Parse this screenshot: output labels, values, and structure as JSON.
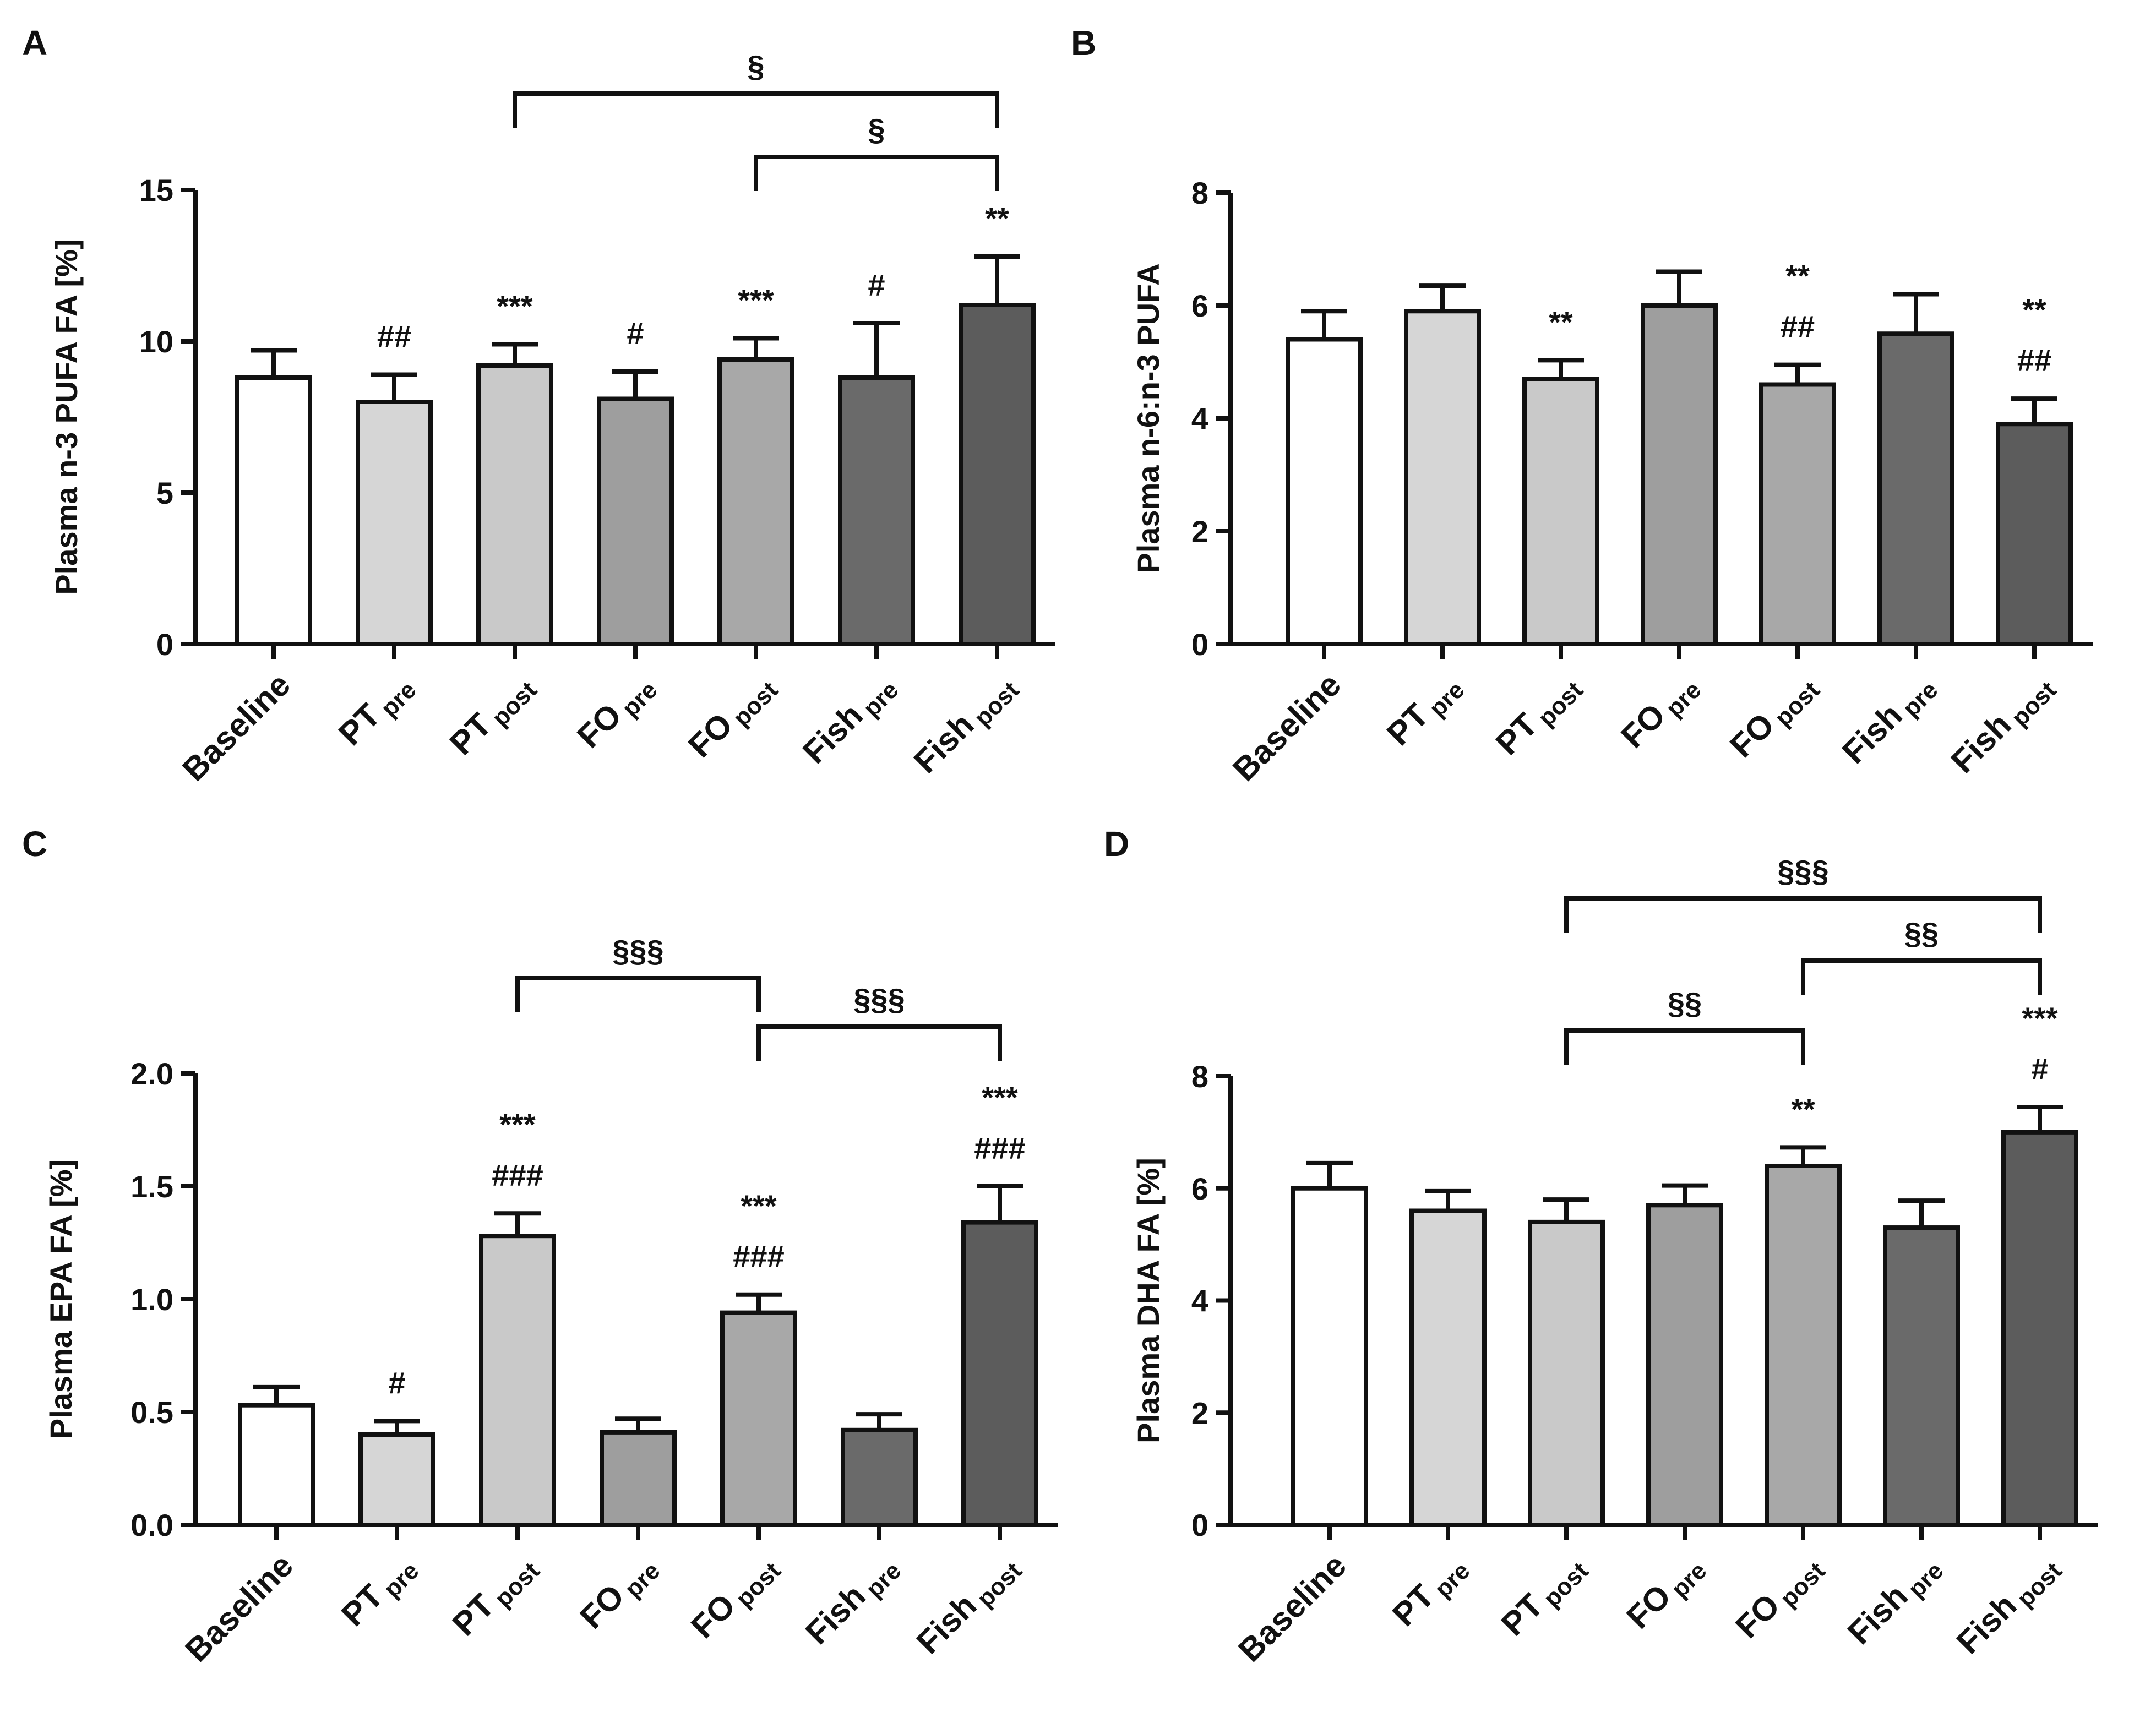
{
  "colors": {
    "Baseline": "#ffffff",
    "PT_pre": "#d6d6d6",
    "PT_post": "#c9c9c9",
    "FO_pre": "#9e9e9e",
    "FO_post": "#a8a8a8",
    "Fish_pre": "#6a6a6a",
    "Fish_post": "#5c5c5c"
  },
  "chart_data": [
    {
      "panel": "A",
      "type": "bar",
      "title": "",
      "ylabel": "Plasma n-3 PUFA FA [%]",
      "xlabel": "",
      "ylim": [
        0,
        15
      ],
      "yticks": [
        0,
        5,
        10,
        15
      ],
      "ytick_labels": [
        "0",
        "5",
        "10",
        "15"
      ],
      "categories": [
        {
          "main": "Baseline",
          "sub": ""
        },
        {
          "main": "PT",
          "sub": "pre"
        },
        {
          "main": "PT",
          "sub": "post"
        },
        {
          "main": "FO",
          "sub": "pre"
        },
        {
          "main": "FO",
          "sub": "post"
        },
        {
          "main": "Fish",
          "sub": "pre"
        },
        {
          "main": "Fish",
          "sub": "post"
        }
      ],
      "values": [
        8.8,
        8.0,
        9.2,
        8.1,
        9.4,
        8.8,
        11.2
      ],
      "errors": [
        0.9,
        0.9,
        0.7,
        0.9,
        0.7,
        1.8,
        1.6
      ],
      "annotations": [
        [],
        [
          "##"
        ],
        [
          "***"
        ],
        [
          "#"
        ],
        [
          "***"
        ],
        [
          "#"
        ],
        [
          "**"
        ]
      ],
      "brackets": [
        {
          "from": 2,
          "to": 6,
          "label": "§"
        },
        {
          "from": 4,
          "to": 6,
          "label": "§"
        }
      ]
    },
    {
      "panel": "B",
      "type": "bar",
      "title": "",
      "ylabel": "Plasma n-6:n-3 PUFA",
      "xlabel": "",
      "ylim": [
        0,
        8
      ],
      "yticks": [
        0,
        2,
        4,
        6,
        8
      ],
      "ytick_labels": [
        "0",
        "2",
        "4",
        "6",
        "8"
      ],
      "categories": [
        {
          "main": "Baseline",
          "sub": ""
        },
        {
          "main": "PT",
          "sub": "pre"
        },
        {
          "main": "PT",
          "sub": "post"
        },
        {
          "main": "FO",
          "sub": "pre"
        },
        {
          "main": "FO",
          "sub": "post"
        },
        {
          "main": "Fish",
          "sub": "pre"
        },
        {
          "main": "Fish",
          "sub": "post"
        }
      ],
      "values": [
        5.4,
        5.9,
        4.7,
        6.0,
        4.6,
        5.5,
        3.9
      ],
      "errors": [
        0.5,
        0.45,
        0.33,
        0.6,
        0.35,
        0.7,
        0.45
      ],
      "annotations": [
        [],
        [],
        [
          "**"
        ],
        [],
        [
          "**",
          "##"
        ],
        [],
        [
          "**",
          "##"
        ]
      ],
      "brackets": []
    },
    {
      "panel": "C",
      "type": "bar",
      "title": "",
      "ylabel": "Plasma EPA FA [%]",
      "xlabel": "",
      "ylim": [
        0,
        2
      ],
      "yticks": [
        0,
        0.5,
        1,
        1.5,
        2
      ],
      "ytick_labels": [
        "0.0",
        "0.5",
        "1.0",
        "1.5",
        "2.0"
      ],
      "categories": [
        {
          "main": "Baseline",
          "sub": ""
        },
        {
          "main": "PT",
          "sub": "pre"
        },
        {
          "main": "PT",
          "sub": "post"
        },
        {
          "main": "FO",
          "sub": "pre"
        },
        {
          "main": "FO",
          "sub": "post"
        },
        {
          "main": "Fish",
          "sub": "pre"
        },
        {
          "main": "Fish",
          "sub": "post"
        }
      ],
      "values": [
        0.53,
        0.4,
        1.28,
        0.41,
        0.94,
        0.42,
        1.34
      ],
      "errors": [
        0.08,
        0.06,
        0.1,
        0.06,
        0.08,
        0.07,
        0.16
      ],
      "annotations": [
        [],
        [
          "#"
        ],
        [
          "***",
          "###"
        ],
        [],
        [
          "***",
          "###"
        ],
        [],
        [
          "***",
          "###"
        ]
      ],
      "brackets": [
        {
          "from": 2,
          "to": 4,
          "label": "§§§"
        },
        {
          "from": 4,
          "to": 6,
          "label": "§§§"
        }
      ]
    },
    {
      "panel": "D",
      "type": "bar",
      "title": "",
      "ylabel": "Plasma DHA FA [%]",
      "xlabel": "",
      "ylim": [
        0,
        8
      ],
      "yticks": [
        0,
        2,
        4,
        6,
        8
      ],
      "ytick_labels": [
        "0",
        "2",
        "4",
        "6",
        "8"
      ],
      "categories": [
        {
          "main": "Baseline",
          "sub": ""
        },
        {
          "main": "PT",
          "sub": "pre"
        },
        {
          "main": "PT",
          "sub": "post"
        },
        {
          "main": "FO",
          "sub": "pre"
        },
        {
          "main": "FO",
          "sub": "post"
        },
        {
          "main": "Fish",
          "sub": "pre"
        },
        {
          "main": "Fish",
          "sub": "post"
        }
      ],
      "values": [
        6.0,
        5.6,
        5.4,
        5.7,
        6.4,
        5.3,
        7.0
      ],
      "errors": [
        0.45,
        0.35,
        0.4,
        0.35,
        0.33,
        0.48,
        0.45
      ],
      "annotations": [
        [],
        [],
        [],
        [],
        [
          "**"
        ],
        [],
        [
          "***",
          "#"
        ]
      ],
      "brackets": [
        {
          "from": 2,
          "to": 6,
          "label": "§§§"
        },
        {
          "from": 4,
          "to": 6,
          "label": "§§"
        },
        {
          "from": 2,
          "to": 4,
          "label": "§§"
        }
      ]
    }
  ]
}
